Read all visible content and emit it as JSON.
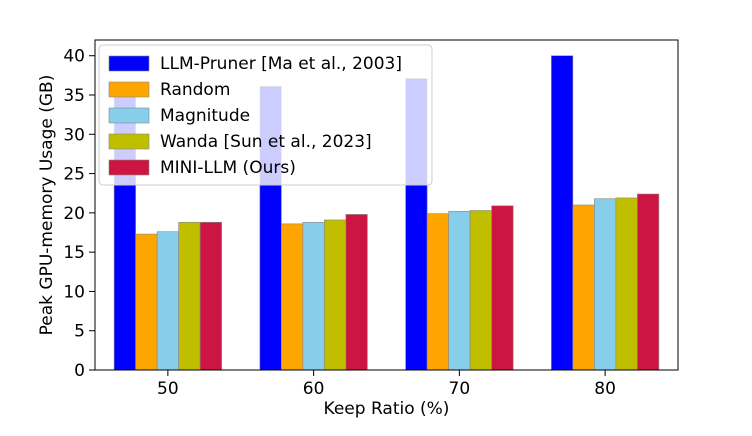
{
  "chart_data": {
    "type": "bar",
    "xlabel": "Keep Ratio (%)",
    "ylabel": "Peak GPU-memory Usage (GB)",
    "categories": [
      "50",
      "60",
      "70",
      "80"
    ],
    "ylim": [
      0,
      42
    ],
    "yticks": [
      "0",
      "5",
      "10",
      "15",
      "20",
      "25",
      "30",
      "35",
      "40"
    ],
    "grid": false,
    "legend_position": "top-left",
    "series": [
      {
        "name": "LLM-Pruner [Ma et al., 2003]",
        "color": "#0000ff",
        "values": [
          35.2,
          36.1,
          37.1,
          40.0
        ]
      },
      {
        "name": "Random",
        "color": "#ffa500",
        "values": [
          17.3,
          18.6,
          19.9,
          21.0
        ]
      },
      {
        "name": "Magnitude",
        "color": "#87ceeb",
        "values": [
          17.6,
          18.8,
          20.2,
          21.8
        ]
      },
      {
        "name": "Wanda [Sun et al., 2023]",
        "color": "#bfbf00",
        "values": [
          18.8,
          19.1,
          20.3,
          21.9
        ]
      },
      {
        "name": "MINI-LLM (Ours)",
        "color": "#cc1543",
        "values": [
          18.8,
          19.8,
          20.9,
          22.4
        ]
      }
    ]
  }
}
